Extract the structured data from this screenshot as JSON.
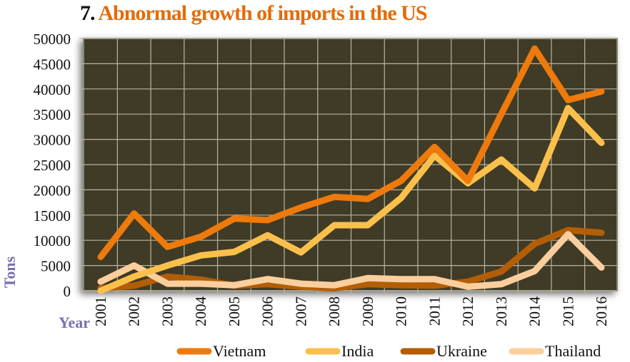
{
  "chart_data": {
    "type": "line",
    "title_number": "7.",
    "title": "Abnormal growth of imports in the US",
    "xlabel": "Year",
    "ylabel": "Tons",
    "ylim": [
      0,
      50000
    ],
    "yticks": [
      "0",
      "5000",
      "10000",
      "15000",
      "20000",
      "25000",
      "30000",
      "35000",
      "40000",
      "45000",
      "50000"
    ],
    "categories": [
      "2001",
      "2002",
      "2003",
      "2004",
      "2005",
      "2006",
      "2007",
      "2008",
      "2009",
      "2010",
      "2011",
      "2012",
      "2013",
      "2014",
      "2015",
      "2016"
    ],
    "grid": true,
    "legend_position": "bottom",
    "series": [
      {
        "name": "Vietnam",
        "color": "#ee7a0c",
        "values": [
          6700,
          15300,
          8700,
          10700,
          14300,
          14000,
          16500,
          18600,
          18200,
          21800,
          28500,
          21800,
          35000,
          48000,
          37800,
          39500
        ]
      },
      {
        "name": "India",
        "color": "#fbc04c",
        "values": [
          0,
          2800,
          5000,
          7000,
          7700,
          11000,
          7600,
          13000,
          13000,
          18400,
          26800,
          21300,
          26000,
          20300,
          36200,
          29300
        ]
      },
      {
        "name": "Ukraine",
        "color": "#b35e06",
        "values": [
          500,
          1000,
          2800,
          2200,
          1000,
          1300,
          800,
          500,
          1300,
          1100,
          1000,
          1800,
          3800,
          9300,
          12000,
          11500
        ]
      },
      {
        "name": "Thailand",
        "color": "#fbcf9d",
        "values": [
          1800,
          5000,
          1400,
          1400,
          1100,
          2300,
          1400,
          1100,
          2500,
          2300,
          2300,
          800,
          1300,
          3900,
          11200,
          4600
        ]
      }
    ]
  }
}
